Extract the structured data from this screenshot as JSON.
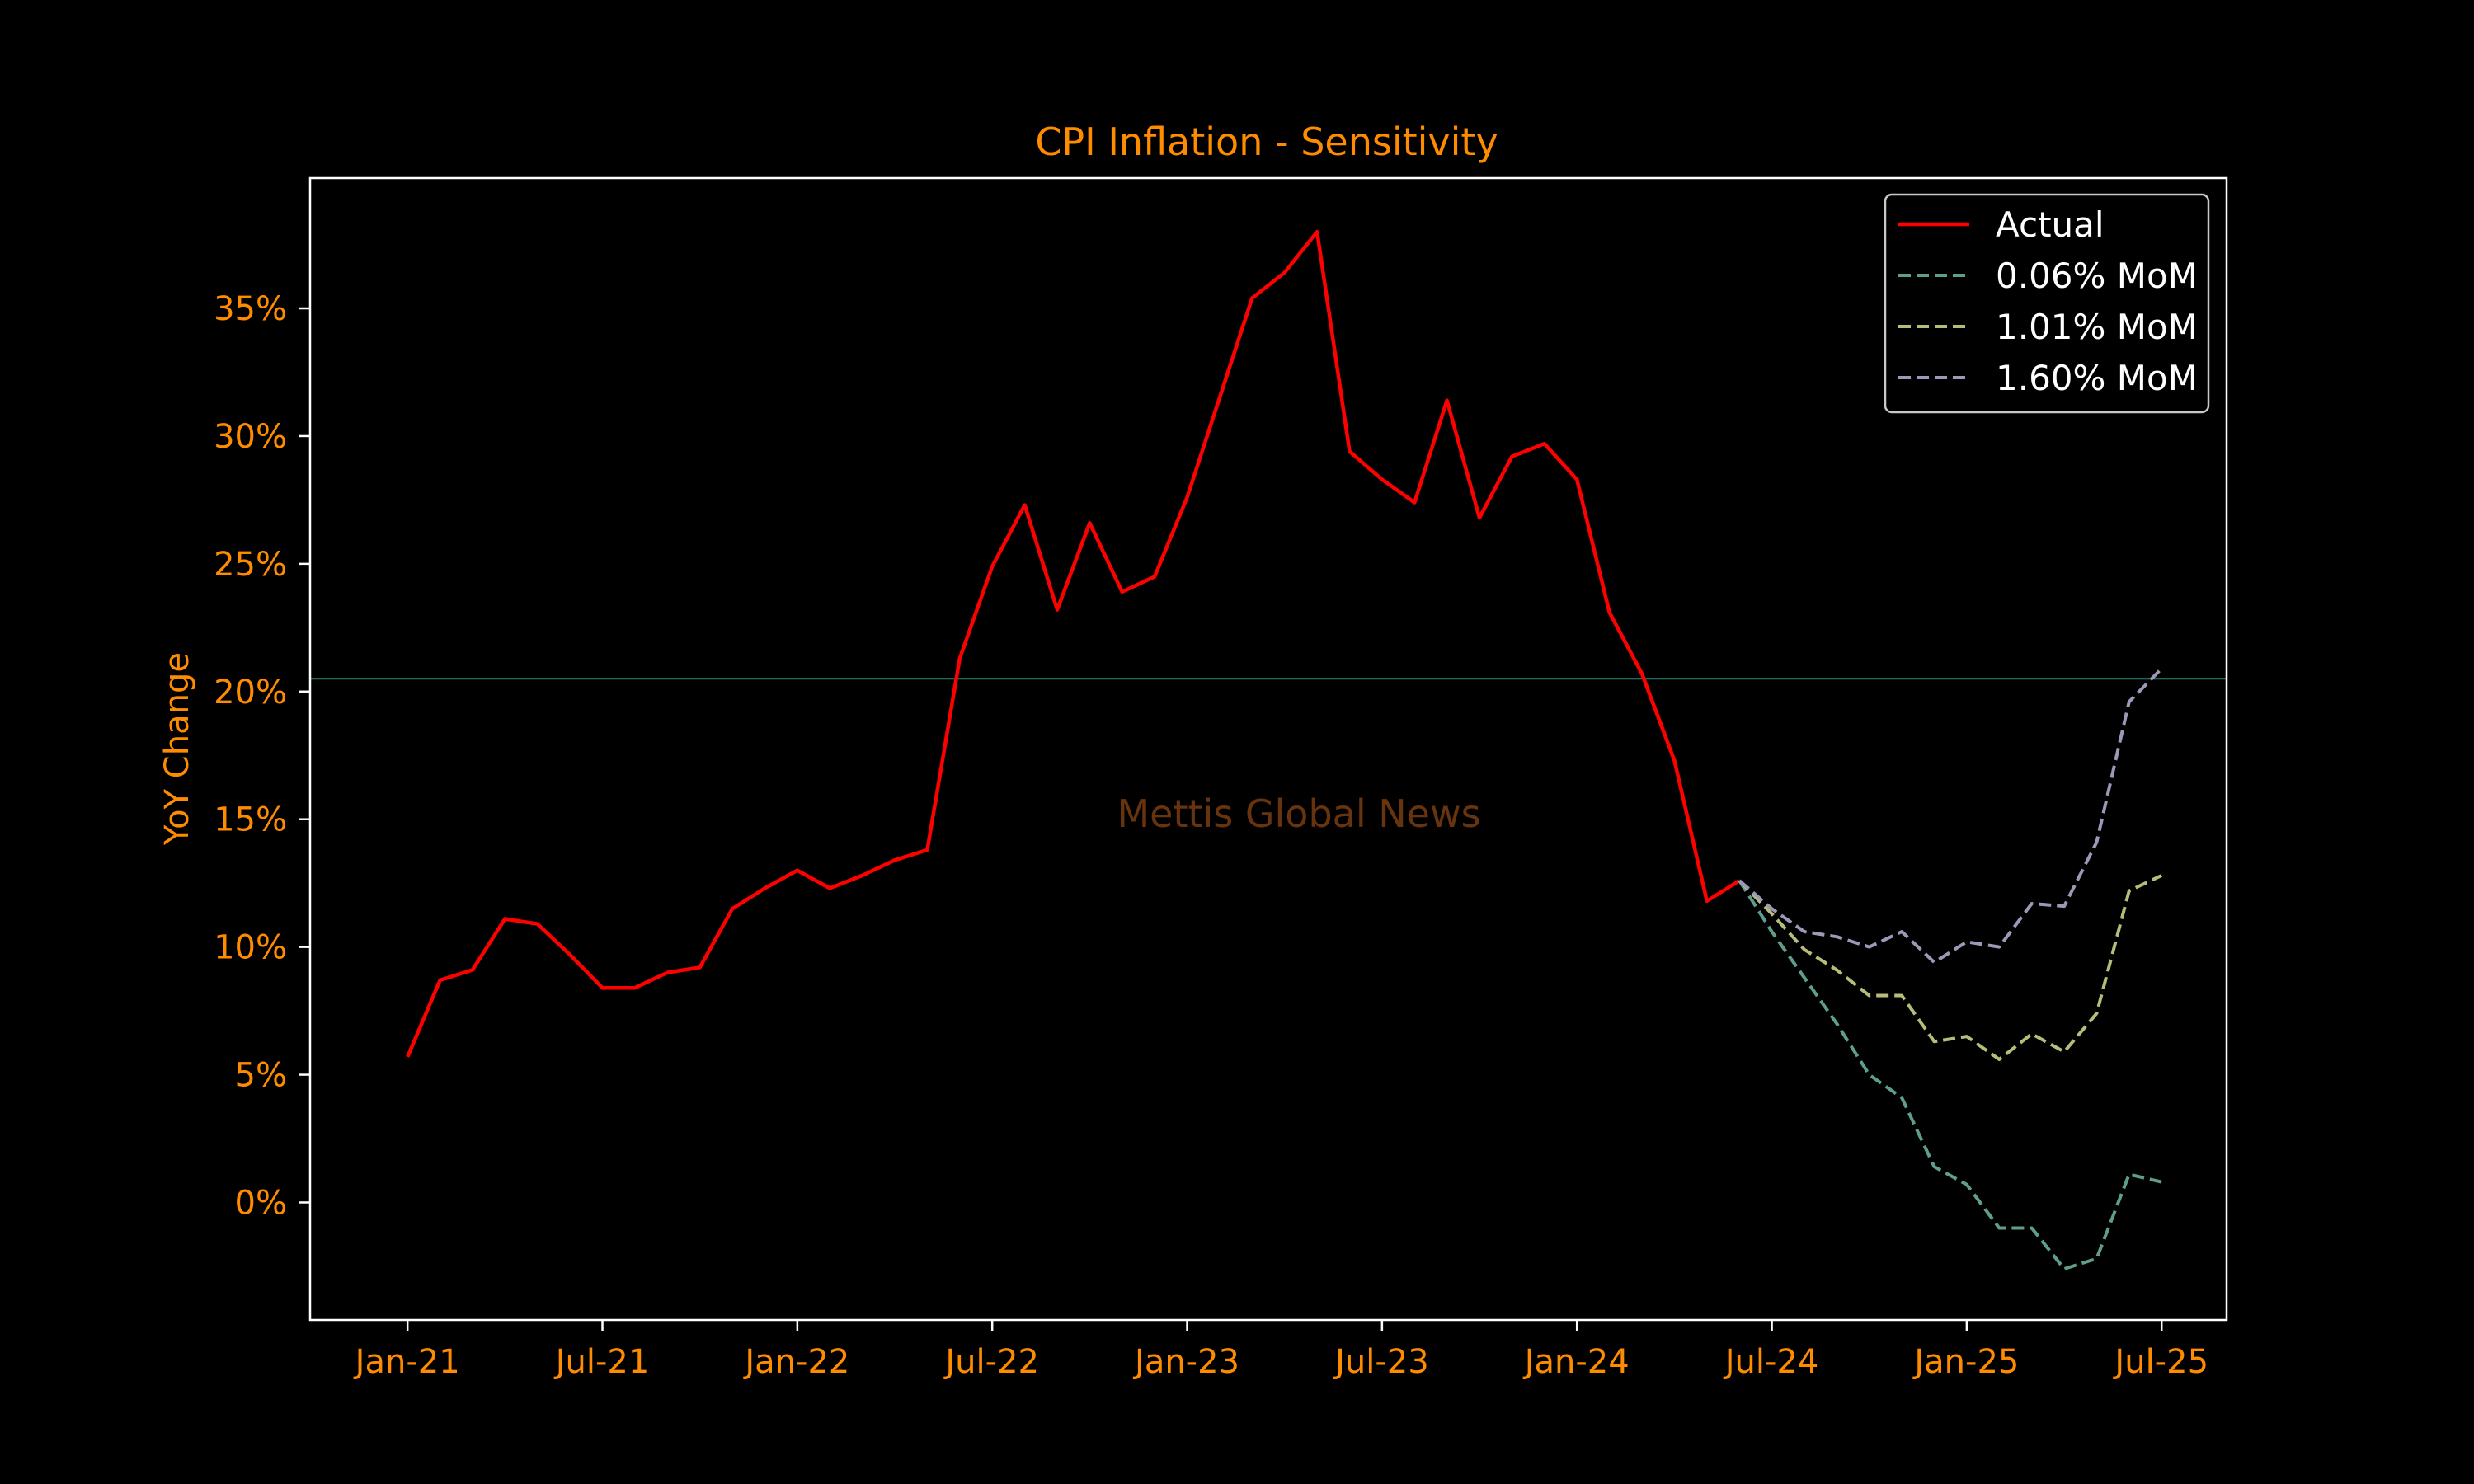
{
  "chart_data": {
    "type": "line",
    "title": "CPI Inflation - Sensitivity",
    "ylabel": "YoY Change",
    "xlabel": "",
    "watermark": "Mettis Global News",
    "x_ticks": [
      "Jan-21",
      "Jul-21",
      "Jan-22",
      "Jul-22",
      "Jan-23",
      "Jul-23",
      "Jan-24",
      "Jul-24",
      "Jan-25",
      "Jul-25"
    ],
    "y_ticks": [
      "0%",
      "5%",
      "10%",
      "15%",
      "20%",
      "25%",
      "30%",
      "35%"
    ],
    "xlim": [
      "2020-10",
      "2025-09"
    ],
    "ylim": [
      -4.6,
      40.1
    ],
    "grid": false,
    "legend_position": "top-right",
    "reference_line": {
      "y": 20.5,
      "color": "#2e8b74"
    },
    "colors": {
      "background": "#000000",
      "frame": "#ffffff",
      "text": "#ff8c00"
    },
    "series": [
      {
        "name": "Actual",
        "style": "solid",
        "color": "#ff0000",
        "x": [
          "2021-01",
          "2021-02",
          "2021-03",
          "2021-04",
          "2021-05",
          "2021-06",
          "2021-07",
          "2021-08",
          "2021-09",
          "2021-10",
          "2021-11",
          "2021-12",
          "2022-01",
          "2022-02",
          "2022-03",
          "2022-04",
          "2022-05",
          "2022-06",
          "2022-07",
          "2022-08",
          "2022-09",
          "2022-10",
          "2022-11",
          "2022-12",
          "2023-01",
          "2023-02",
          "2023-03",
          "2023-04",
          "2023-05",
          "2023-06",
          "2023-07",
          "2023-08",
          "2023-09",
          "2023-10",
          "2023-11",
          "2023-12",
          "2024-01",
          "2024-02",
          "2024-03",
          "2024-04",
          "2024-05",
          "2024-06"
        ],
        "values": [
          5.7,
          8.7,
          9.1,
          11.1,
          10.9,
          9.7,
          8.4,
          8.4,
          9.0,
          9.2,
          11.5,
          12.3,
          13.0,
          12.3,
          12.8,
          13.4,
          13.8,
          21.3,
          24.9,
          27.3,
          23.2,
          26.6,
          23.9,
          24.5,
          27.6,
          31.5,
          35.4,
          36.4,
          38.0,
          29.4,
          28.3,
          27.4,
          31.4,
          26.8,
          29.2,
          29.7,
          28.3,
          23.1,
          20.7,
          17.3,
          11.8,
          12.6
        ]
      },
      {
        "name": "0.06% MoM",
        "style": "dashed",
        "color": "#5f9e8f",
        "x": [
          "2024-06",
          "2024-07",
          "2024-08",
          "2024-09",
          "2024-10",
          "2024-11",
          "2024-12",
          "2025-01",
          "2025-02",
          "2025-03",
          "2025-04",
          "2025-05",
          "2025-06",
          "2025-07"
        ],
        "values": [
          12.6,
          10.6,
          8.8,
          7.0,
          5.0,
          4.1,
          1.4,
          0.7,
          -1.0,
          -1.0,
          -2.6,
          -2.2,
          1.1,
          0.8
        ]
      },
      {
        "name": "1.01% MoM",
        "style": "dashed",
        "color": "#b8bc7a",
        "x": [
          "2024-06",
          "2024-07",
          "2024-08",
          "2024-09",
          "2024-10",
          "2024-11",
          "2024-12",
          "2025-01",
          "2025-02",
          "2025-03",
          "2025-04",
          "2025-05",
          "2025-06",
          "2025-07"
        ],
        "values": [
          12.6,
          11.3,
          9.9,
          9.1,
          8.1,
          8.1,
          6.3,
          6.5,
          5.6,
          6.6,
          5.9,
          7.4,
          12.2,
          12.8
        ]
      },
      {
        "name": "1.60% MoM",
        "style": "dashed",
        "color": "#9a9ab8",
        "x": [
          "2024-06",
          "2024-07",
          "2024-08",
          "2024-09",
          "2024-10",
          "2024-11",
          "2024-12",
          "2025-01",
          "2025-02",
          "2025-03",
          "2025-04",
          "2025-05",
          "2025-06",
          "2025-07"
        ],
        "values": [
          12.6,
          11.5,
          10.6,
          10.4,
          10.0,
          10.6,
          9.4,
          10.2,
          10.0,
          11.7,
          11.6,
          14.1,
          19.6,
          20.9
        ]
      }
    ]
  }
}
